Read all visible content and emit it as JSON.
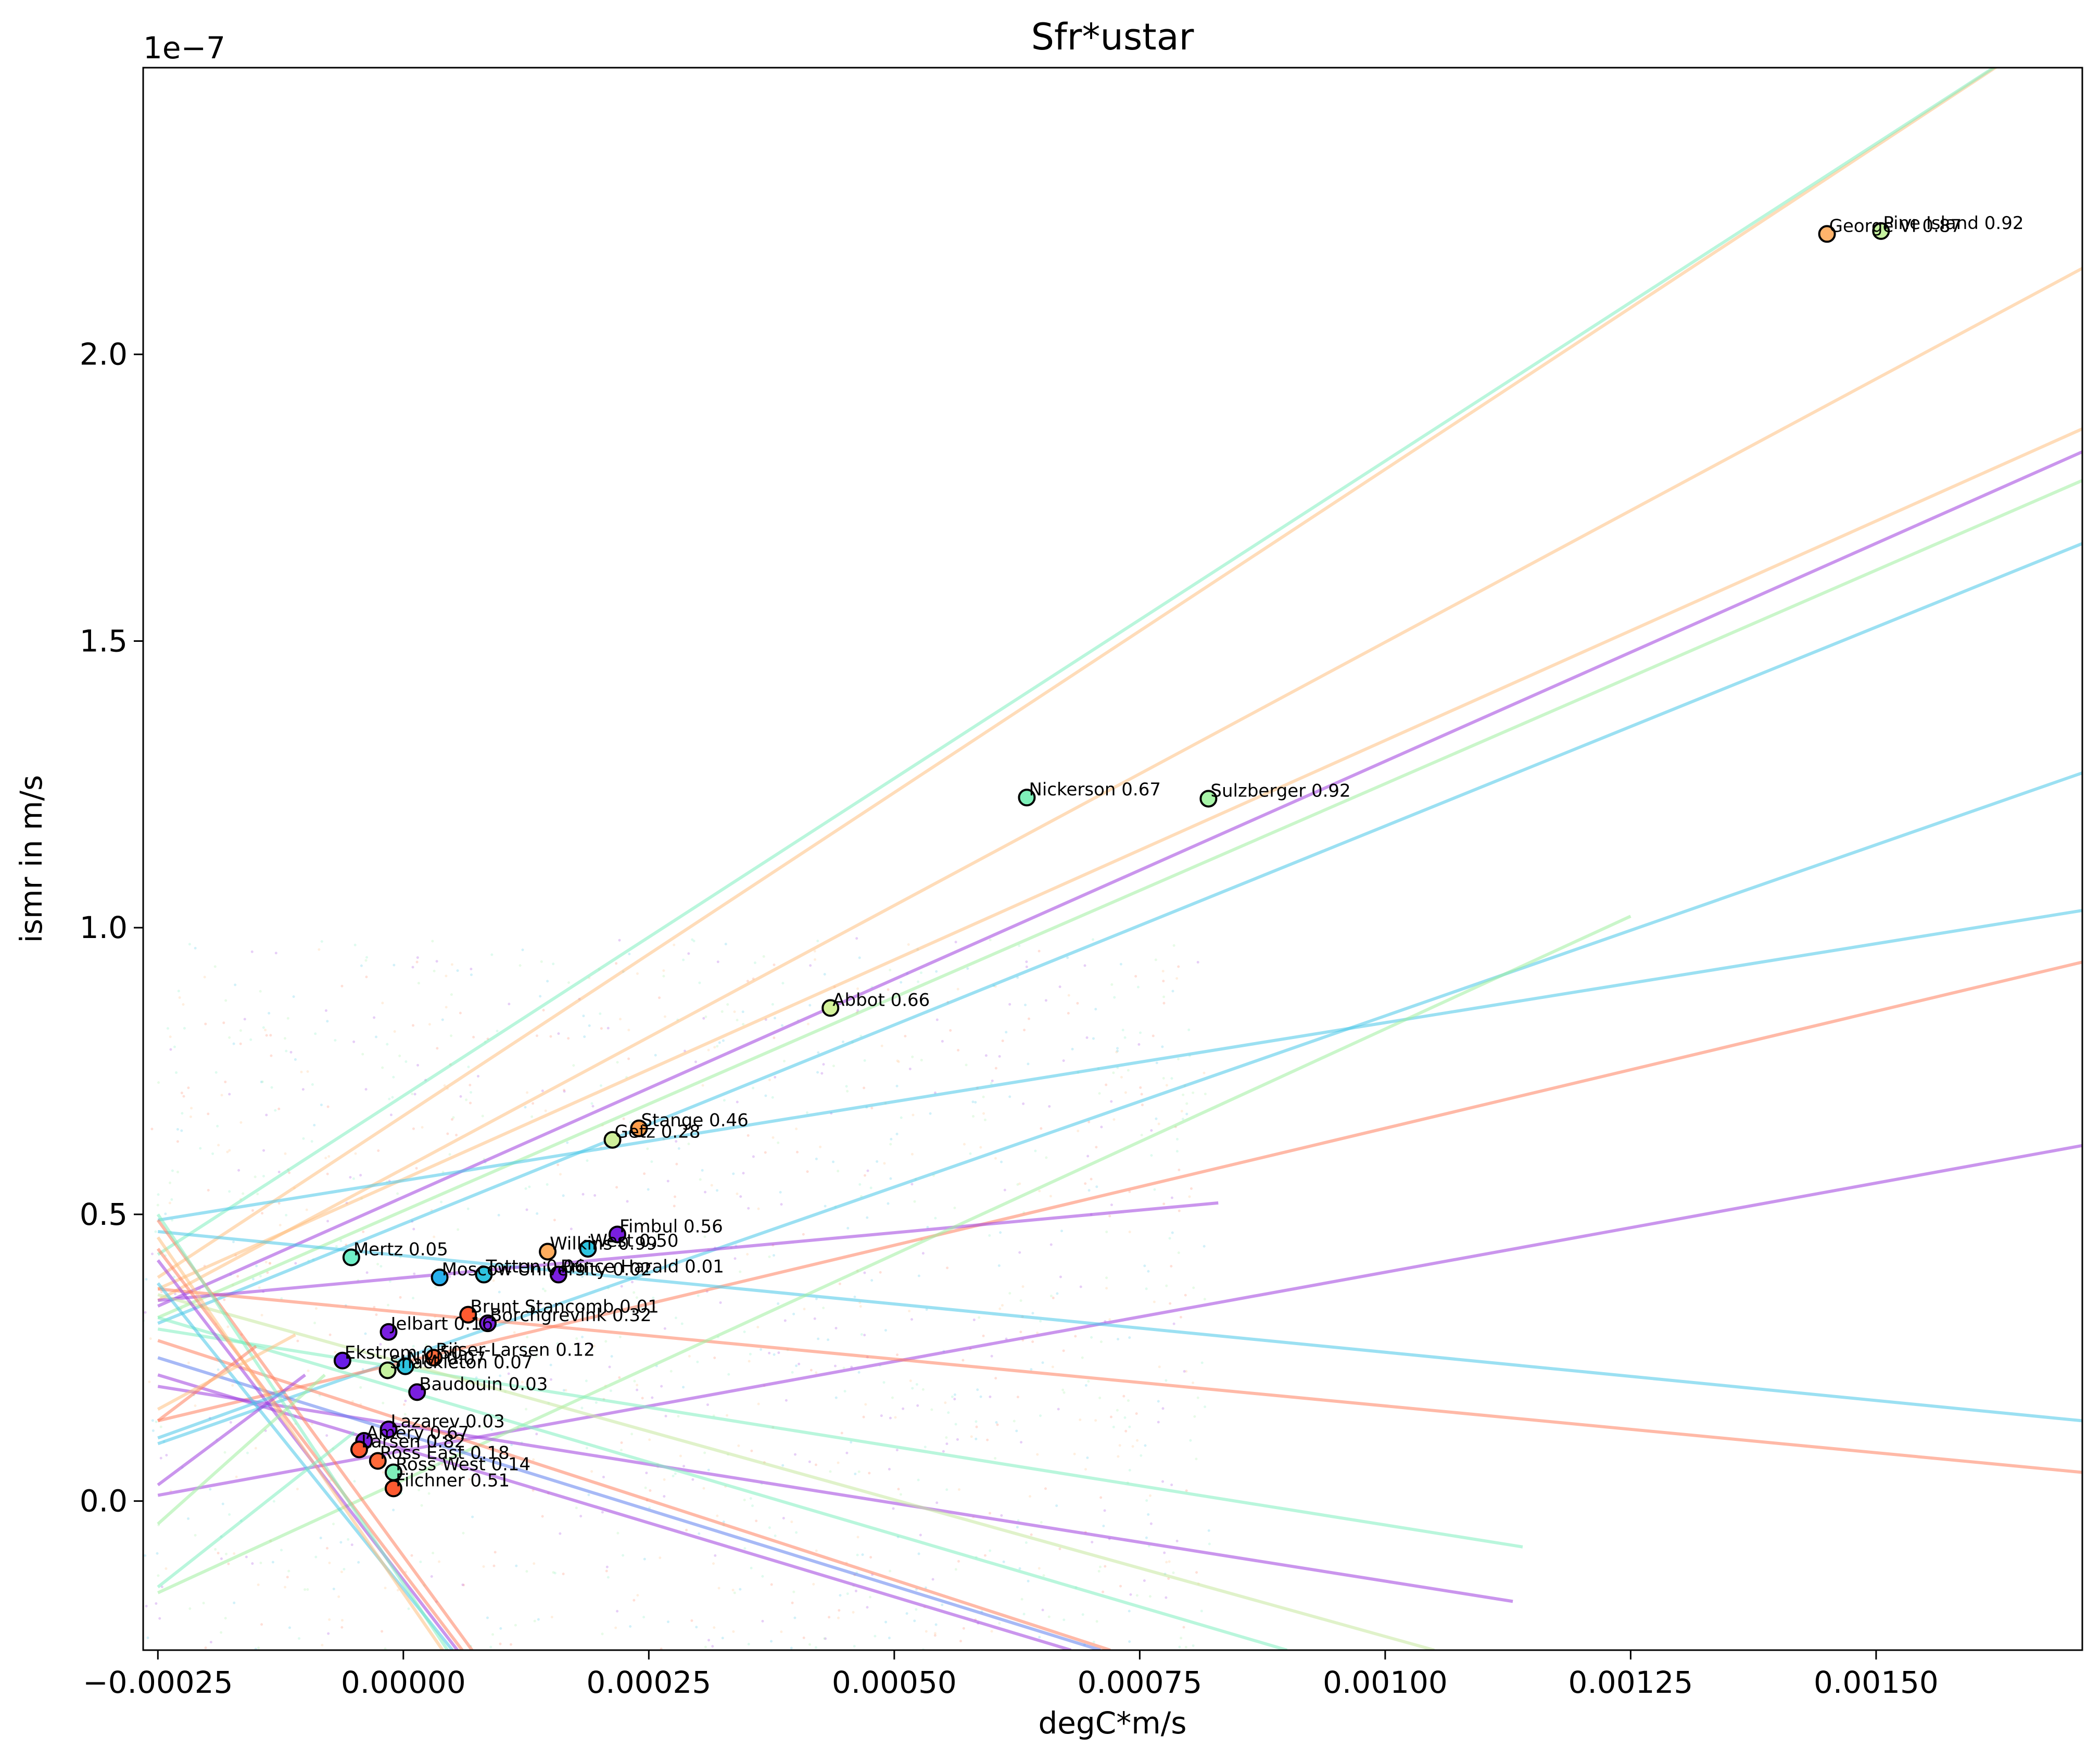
{
  "chart_data": {
    "type": "scatter",
    "title": "Sfr*ustar",
    "xlabel": "degC*m/s",
    "ylabel": "ismr in m/s",
    "y_offset_label": "1e−7",
    "xlim": [
      -0.000265,
      0.00171
    ],
    "ylim": [
      -2.6e-08,
      2.5e-07
    ],
    "x_ticks": [
      {
        "value": -0.00025,
        "label": "−0.00025"
      },
      {
        "value": 0.0,
        "label": "0.00000"
      },
      {
        "value": 0.00025,
        "label": "0.00025"
      },
      {
        "value": 0.0005,
        "label": "0.00050"
      },
      {
        "value": 0.00075,
        "label": "0.00075"
      },
      {
        "value": 0.001,
        "label": "0.00100"
      },
      {
        "value": 0.00125,
        "label": "0.00125"
      },
      {
        "value": 0.0015,
        "label": "0.00150"
      }
    ],
    "y_ticks": [
      {
        "value": 0.0,
        "label": "0.0"
      },
      {
        "value": 5e-08,
        "label": "0.5"
      },
      {
        "value": 1e-07,
        "label": "1.0"
      },
      {
        "value": 1.5e-07,
        "label": "1.5"
      },
      {
        "value": 2e-07,
        "label": "2.0"
      }
    ],
    "grid": false,
    "points": [
      {
        "label": "Pine Island 0.92",
        "x": 0.001505,
        "y": 2.215e-07,
        "color": "#c6f2a0"
      },
      {
        "label": "George VI 0.87",
        "x": 0.00145,
        "y": 2.21e-07,
        "color": "#ffb36b"
      },
      {
        "label": "Nickerson 0.67",
        "x": 0.000635,
        "y": 1.227e-07,
        "color": "#7ef0b9"
      },
      {
        "label": "Sulzberger 0.92",
        "x": 0.00082,
        "y": 1.225e-07,
        "color": "#a8f5a8"
      },
      {
        "label": "Abbot 0.66",
        "x": 0.000435,
        "y": 8.6e-08,
        "color": "#d3f29a"
      },
      {
        "label": "Stange 0.46",
        "x": 0.00024,
        "y": 6.5e-08,
        "color": "#ff9e4a"
      },
      {
        "label": "Getz 0.28",
        "x": 0.000213,
        "y": 6.3e-08,
        "color": "#cfee9a"
      },
      {
        "label": "Fimbul 0.56",
        "x": 0.000218,
        "y": 4.65e-08,
        "color": "#7a1fe0"
      },
      {
        "label": "West 0.50",
        "x": 0.000188,
        "y": 4.4e-08,
        "color": "#2ec4e0"
      },
      {
        "label": "Wilkins 0.99",
        "x": 0.000147,
        "y": 4.35e-08,
        "color": "#ffad5e"
      },
      {
        "label": "Mertz 0.05",
        "x": -5.3e-05,
        "y": 4.25e-08,
        "color": "#6ff0c8"
      },
      {
        "label": "Totten 0.06",
        "x": 8.2e-05,
        "y": 3.95e-08,
        "color": "#2ec4e0"
      },
      {
        "label": "Prince Harald 0.01",
        "x": 0.000158,
        "y": 3.95e-08,
        "color": "#7a1fe0"
      },
      {
        "label": "Moscow University 0.02",
        "x": 3.7e-05,
        "y": 3.9e-08,
        "color": "#28b0ee"
      },
      {
        "label": "Brunt Stancomb 0.01",
        "x": 6.6e-05,
        "y": 3.25e-08,
        "color": "#ff5a30"
      },
      {
        "label": "Borchgrevink 0.32",
        "x": 8.6e-05,
        "y": 3.1e-08,
        "color": "#7a1fe0"
      },
      {
        "label": "Jelbart 0.16",
        "x": -1.5e-05,
        "y": 2.95e-08,
        "color": "#7a1fe0"
      },
      {
        "label": "Riiser-Larsen 0.12",
        "x": 3.1e-05,
        "y": 2.5e-08,
        "color": "#ff6a3a"
      },
      {
        "label": "Ekstrom 0.50",
        "x": -6.2e-05,
        "y": 2.45e-08,
        "color": "#6a1ce8"
      },
      {
        "label": "Nivl 0.07",
        "x": 2e-06,
        "y": 2.35e-08,
        "color": "#2ec4e0"
      },
      {
        "label": "Shackleton 0.07",
        "x": -1.6e-05,
        "y": 2.28e-08,
        "color": "#c6f2a0"
      },
      {
        "label": "Baudouin 0.03",
        "x": 1.4e-05,
        "y": 1.9e-08,
        "color": "#7a1fe0"
      },
      {
        "label": "Lazarev 0.03",
        "x": -1.5e-05,
        "y": 1.25e-08,
        "color": "#7a1fe0"
      },
      {
        "label": "Amery 0.67",
        "x": -4e-05,
        "y": 1.05e-08,
        "color": "#7a1fe0"
      },
      {
        "label": "Larsen 0.82",
        "x": -4.5e-05,
        "y": 9e-09,
        "color": "#ff5a30"
      },
      {
        "label": "Ross East 0.18",
        "x": -2.6e-05,
        "y": 7e-09,
        "color": "#ff6a3a"
      },
      {
        "label": "Ross West 0.14",
        "x": -1e-05,
        "y": 5e-09,
        "color": "#7ef0b9"
      },
      {
        "label": "Filchner 0.51",
        "x": -1e-05,
        "y": 2.2e-09,
        "color": "#ff5a30"
      }
    ],
    "fit_lines": [
      {
        "color": "#ffc080",
        "p1": [
          -0.00025,
          3.9e-08
        ],
        "p2": [
          0.00171,
          2.6e-07
        ]
      },
      {
        "color": "#80f0c0",
        "p1": [
          -0.00025,
          4.3e-08
        ],
        "p2": [
          0.00171,
          2.6e-07
        ]
      },
      {
        "color": "#ffc080",
        "p1": [
          -0.00025,
          3.5e-08
        ],
        "p2": [
          0.00171,
          2.15e-07
        ]
      },
      {
        "color": "#a0f0a0",
        "p1": [
          -0.00025,
          3.2e-08
        ],
        "p2": [
          0.00171,
          1.78e-07
        ]
      },
      {
        "color": "#ffc080",
        "p1": [
          -0.00025,
          3.7e-08
        ],
        "p2": [
          0.00171,
          1.87e-07
        ]
      },
      {
        "color": "#a040e0",
        "p1": [
          -0.00025,
          3.4e-08
        ],
        "p2": [
          0.00171,
          1.83e-07
        ]
      },
      {
        "color": "#4ac8e8",
        "p1": [
          -0.00025,
          3.1e-08
        ],
        "p2": [
          0.00171,
          1.67e-07
        ]
      },
      {
        "color": "#4ac8e8",
        "p1": [
          -0.00025,
          1e-08
        ],
        "p2": [
          0.00171,
          1.27e-07
        ]
      },
      {
        "color": "#4ac8e8",
        "p1": [
          -0.00025,
          4.9e-08
        ],
        "p2": [
          0.00171,
          1.03e-07
        ]
      },
      {
        "color": "#ff8060",
        "p1": [
          -0.00025,
          1.4e-08
        ],
        "p2": [
          0.00171,
          9.4e-08
        ]
      },
      {
        "color": "#a040e0",
        "p1": [
          -0.00025,
          1e-09
        ],
        "p2": [
          0.00171,
          6.2e-08
        ]
      },
      {
        "color": "#4ac8e8",
        "p1": [
          -0.00025,
          4.7e-08
        ],
        "p2": [
          0.00171,
          1.4e-08
        ]
      },
      {
        "color": "#ff8060",
        "p1": [
          -0.00025,
          3.7e-08
        ],
        "p2": [
          0.00171,
          5e-09
        ]
      },
      {
        "color": "#a040e0",
        "p1": [
          -0.00025,
          3.5e-08
        ],
        "p2": [
          0.00083,
          5.2e-08
        ]
      },
      {
        "color": "#a0f0a0",
        "p1": [
          -0.00025,
          -1.6e-08
        ],
        "p2": [
          0.00125,
          1.02e-07
        ]
      },
      {
        "color": "#a040e0",
        "p1": [
          -0.00025,
          2e-08
        ],
        "p2": [
          0.00113,
          -1.75e-08
        ]
      },
      {
        "color": "#80f0c0",
        "p1": [
          -0.00025,
          3e-08
        ],
        "p2": [
          0.00114,
          -8e-09
        ]
      },
      {
        "color": "#a040e0",
        "p1": [
          -0.00025,
          2.2e-08
        ],
        "p2": [
          0.00068,
          -2.6e-08
        ]
      },
      {
        "color": "#ff8060",
        "p1": [
          -0.00025,
          2.8e-08
        ],
        "p2": [
          0.00072,
          -2.6e-08
        ]
      },
      {
        "color": "#c8e8a0",
        "p1": [
          -0.00025,
          3.6e-08
        ],
        "p2": [
          0.00105,
          -2.6e-08
        ]
      },
      {
        "color": "#6080f0",
        "p1": [
          -0.00025,
          2.5e-08
        ],
        "p2": [
          0.00071,
          -2.6e-08
        ]
      },
      {
        "color": "#80f0c0",
        "p1": [
          -0.00025,
          3.2e-08
        ],
        "p2": [
          0.0009,
          -2.6e-08
        ]
      },
      {
        "color": "#ff8060",
        "p1": [
          -0.00025,
          4.9e-08
        ],
        "p2": [
          7e-05,
          -2.6e-08
        ]
      },
      {
        "color": "#ff8060",
        "p1": [
          -0.00025,
          4.4e-08
        ],
        "p2": [
          6e-05,
          -2.6e-08
        ]
      },
      {
        "color": "#4ac8e8",
        "p1": [
          -0.00025,
          3.8e-08
        ],
        "p2": [
          5e-05,
          -2.6e-08
        ]
      },
      {
        "color": "#a040e0",
        "p1": [
          -0.00025,
          4.2e-08
        ],
        "p2": [
          5.5e-05,
          -2.6e-08
        ]
      },
      {
        "color": "#80f0c0",
        "p1": [
          -0.00025,
          5e-08
        ],
        "p2": [
          4.5e-05,
          -2.6e-08
        ]
      },
      {
        "color": "#ffc080",
        "p1": [
          -0.00025,
          4.6e-08
        ],
        "p2": [
          4e-05,
          -2.6e-08
        ]
      },
      {
        "color": "#a040e0",
        "p1": [
          -0.00025,
          2.8e-09
        ],
        "p2": [
          -0.0001,
          2.2e-08
        ]
      },
      {
        "color": "#4ac8e8",
        "p1": [
          -0.00025,
          1.1e-08
        ],
        "p2": [
          -0.00012,
          1.9e-08
        ]
      },
      {
        "color": "#ff8060",
        "p1": [
          -0.00025,
          1.4e-08
        ],
        "p2": [
          -0.00015,
          2.7e-08
        ]
      },
      {
        "color": "#80f0c0",
        "p1": [
          -0.00025,
          -1.5e-08
        ],
        "p2": [
          -5e-05,
          1.2e-08
        ]
      },
      {
        "color": "#a0f0a0",
        "p1": [
          -0.00025,
          -4e-09
        ],
        "p2": [
          -8e-05,
          2.2e-08
        ]
      },
      {
        "color": "#ffc080",
        "p1": [
          -0.00025,
          1.6e-08
        ],
        "p2": [
          -0.00011,
          2.9e-08
        ]
      }
    ]
  }
}
